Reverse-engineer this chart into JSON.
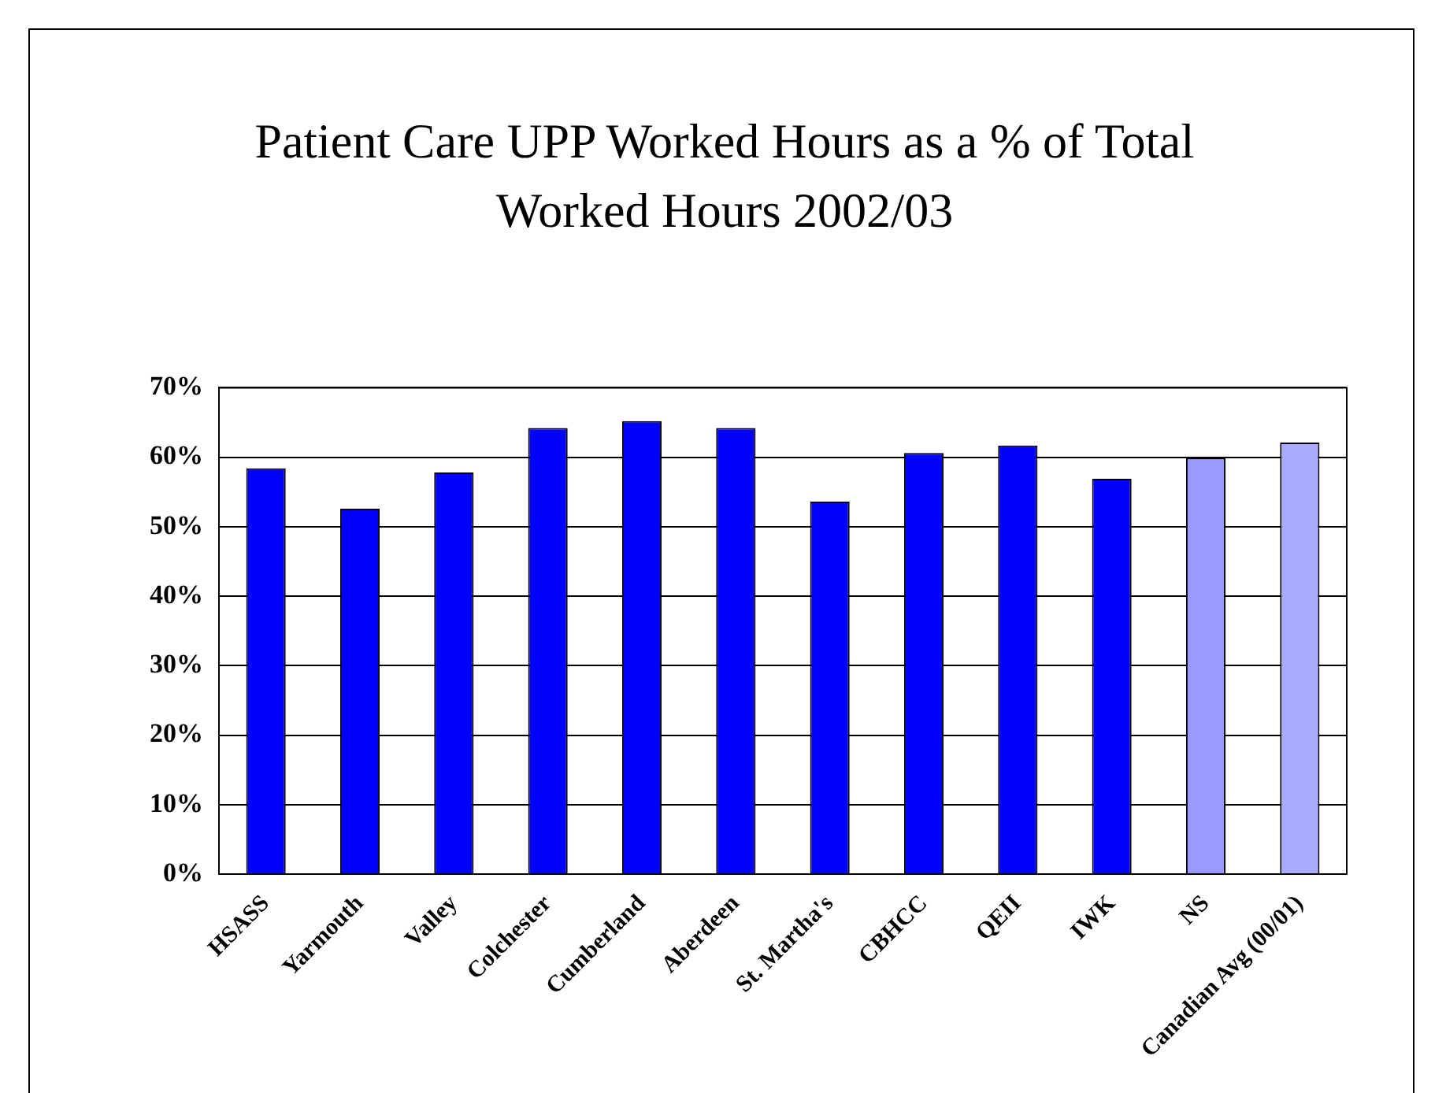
{
  "chart_data": {
    "type": "bar",
    "title": "Patient Care UPP Worked Hours as a % of Total Worked Hours 2002/03",
    "categories": [
      "HSASS",
      "Yarmouth",
      "Valley",
      "Colchester",
      "Cumberland",
      "Aberdeen",
      "St. Martha's",
      "CBHCC",
      "QEII",
      "IWK",
      "NS",
      "Canadian Avg (00/01)"
    ],
    "values": [
      58.4,
      52.6,
      57.8,
      64.2,
      65.2,
      64.2,
      53.6,
      60.6,
      61.7,
      56.9,
      59.9,
      62.1
    ],
    "colors": [
      "#0000ff",
      "#0000ff",
      "#0000ff",
      "#0000ff",
      "#0000ff",
      "#0000ff",
      "#0000ff",
      "#0000ff",
      "#0000ff",
      "#0000ff",
      "#9999ff",
      "#aaaaff"
    ],
    "ylim": [
      0,
      70
    ],
    "yticks": [
      {
        "value": 0,
        "label": "0%"
      },
      {
        "value": 10,
        "label": "10%"
      },
      {
        "value": 20,
        "label": "20%"
      },
      {
        "value": 30,
        "label": "30%"
      },
      {
        "value": 40,
        "label": "40%"
      },
      {
        "value": 50,
        "label": "50%"
      },
      {
        "value": 60,
        "label": "60%"
      },
      {
        "value": 70,
        "label": "70%"
      }
    ],
    "grid": "y",
    "legend": false
  }
}
